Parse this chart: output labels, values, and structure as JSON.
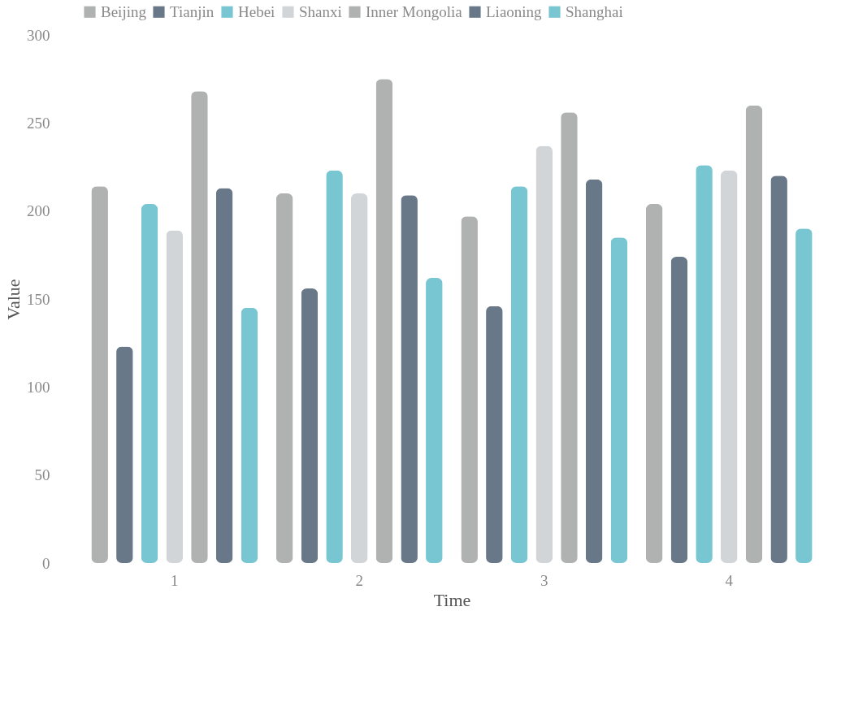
{
  "chart_data": {
    "type": "bar",
    "xlabel": "Time",
    "ylabel": "Value",
    "categories": [
      "1",
      "2",
      "3",
      "4"
    ],
    "series": [
      {
        "name": "Beijing",
        "color": "#b0b1b1",
        "values": [
          214,
          210,
          197,
          204
        ]
      },
      {
        "name": "Tianjin",
        "color": "#687888",
        "values": [
          123,
          156,
          146,
          174
        ]
      },
      {
        "name": "Hebei",
        "color": "#79c6d3",
        "values": [
          204,
          223,
          214,
          226
        ]
      },
      {
        "name": "Shanxi",
        "color": "#d2d5d7",
        "values": [
          189,
          210,
          237,
          223
        ]
      },
      {
        "name": "Inner Mongolia",
        "color": "#b0b1b1",
        "values": [
          268,
          275,
          256,
          260
        ]
      },
      {
        "name": "Liaoning",
        "color": "#687888",
        "values": [
          213,
          209,
          218,
          220
        ]
      },
      {
        "name": "Shanghai",
        "color": "#79c6d3",
        "values": [
          145,
          162,
          185,
          190
        ]
      }
    ],
    "ylim": [
      0,
      300
    ],
    "yticks": [
      0,
      50,
      100,
      150,
      200,
      250,
      300
    ],
    "grid": false,
    "legend": "top"
  }
}
